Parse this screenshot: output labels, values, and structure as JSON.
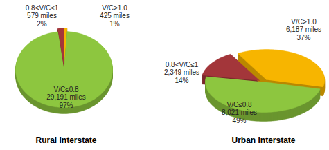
{
  "chart_data": [
    {
      "type": "pie",
      "title": "Rural Interstate",
      "categories": [
        "0.8<V/C≤1",
        "V/C>1.0",
        "V/C≤0.8"
      ],
      "values": [
        2,
        1,
        97
      ],
      "value_labels": [
        "2%",
        "1%",
        "97%"
      ],
      "miles_labels": [
        "579 miles",
        "425 miles",
        "29,191 miles"
      ],
      "colors": [
        "#A3363A",
        "#F7B500",
        "#8DC63F"
      ],
      "data_labels": true
    },
    {
      "type": "pie",
      "title": "Urban Interstate",
      "categories": [
        "0.8<V/C≤1",
        "V/C>1.0",
        "V/C≤0.8"
      ],
      "values": [
        14,
        37,
        49
      ],
      "value_labels": [
        "14%",
        "37%",
        "49%"
      ],
      "miles_labels": [
        "2,349 miles",
        "6,187 miles",
        "8,021 miles"
      ],
      "colors": [
        "#A3363A",
        "#F7B500",
        "#8DC63F"
      ],
      "data_labels": true
    }
  ]
}
